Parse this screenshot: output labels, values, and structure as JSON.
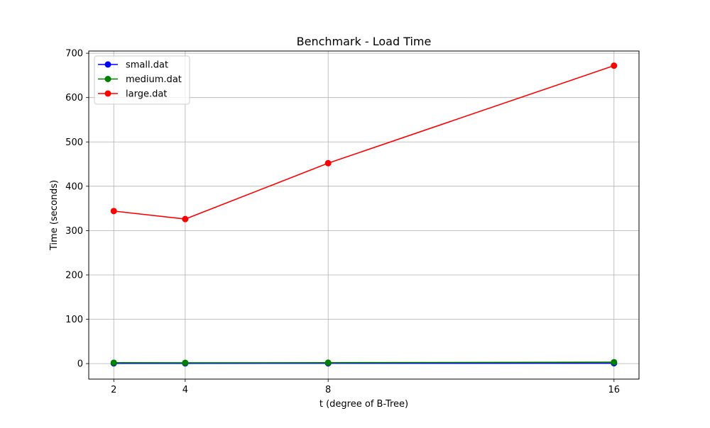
{
  "chart_data": {
    "type": "line",
    "title": "Benchmark - Load Time",
    "xlabel": "t (degree of B-Tree)",
    "ylabel": "Time (seconds)",
    "x": [
      2,
      4,
      8,
      16
    ],
    "xticks": [
      "2",
      "4",
      "8",
      "16"
    ],
    "yticks": [
      "0",
      "100",
      "200",
      "300",
      "400",
      "500",
      "600",
      "700"
    ],
    "xlim": [
      1.3,
      16.7
    ],
    "ylim": [
      -35,
      705
    ],
    "grid": true,
    "legend_position": "top-left",
    "series": [
      {
        "name": "small.dat",
        "color": "#0000ff",
        "values": [
          0.5,
          0.5,
          0.6,
          0.8
        ]
      },
      {
        "name": "medium.dat",
        "color": "#008000",
        "values": [
          2.0,
          1.8,
          2.1,
          3.2
        ]
      },
      {
        "name": "large.dat",
        "color": "#ff0000",
        "values": [
          344,
          326,
          452,
          672
        ]
      }
    ]
  }
}
